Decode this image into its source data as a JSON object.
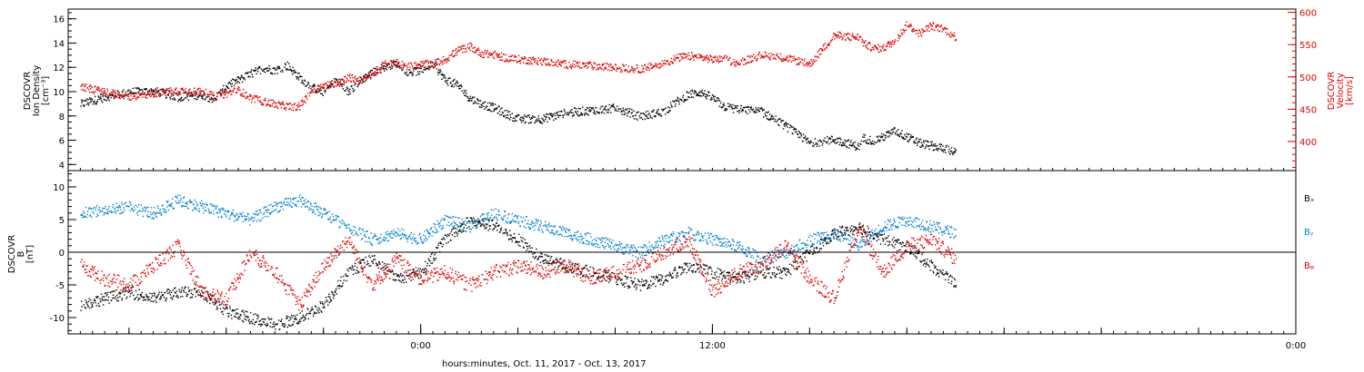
{
  "chart_data": [
    {
      "type": "scatter",
      "ylabel": [
        "DSCOVR",
        "Ion Density",
        "[cm⁻³]"
      ],
      "y2label": [
        "DSCOVR",
        "Velocity",
        "[km/s]"
      ],
      "ylim": [
        3.5,
        16.8
      ],
      "y2lim": [
        355,
        605
      ],
      "yticks": [
        "4",
        "6",
        "8",
        "10",
        "12",
        "14",
        "16"
      ],
      "y2ticks": [
        "400",
        "450",
        "500",
        "550",
        "600"
      ],
      "colors": {
        "density": "#000000",
        "velocity": "#e00000"
      },
      "series": [
        {
          "name": "Ion Density",
          "axis": "left",
          "color": "#000000",
          "x": [
            -14,
            -13,
            -12,
            -11,
            -10,
            -9,
            -8.5,
            -8,
            -7.5,
            -7,
            -6.5,
            -6,
            -5.5,
            -5,
            -4.5,
            -4,
            -3.5,
            -3,
            -2.5,
            -2,
            -1.5,
            -1,
            -0.5,
            0,
            0.5,
            1,
            1.5,
            2,
            2.5,
            3,
            3.5,
            4,
            5,
            6,
            7,
            8,
            9,
            10,
            10.5,
            11,
            11.5,
            12,
            12.5,
            13,
            14,
            15,
            16,
            17,
            18,
            18.2,
            18.6,
            19,
            19.5,
            20,
            20.5,
            21,
            21.5,
            22
          ],
          "y": [
            9.0,
            9.6,
            10.0,
            10.1,
            9.6,
            9.8,
            9.4,
            10.5,
            11.0,
            11.5,
            12.0,
            11.8,
            12.2,
            11.2,
            10.4,
            10.0,
            11.0,
            10.0,
            11.0,
            11.6,
            12.1,
            12.4,
            11.6,
            11.8,
            12.3,
            11.0,
            10.6,
            9.5,
            9.0,
            8.7,
            8.2,
            7.8,
            7.8,
            8.3,
            8.5,
            8.7,
            8.0,
            8.4,
            9.2,
            9.8,
            10.0,
            9.5,
            8.8,
            8.6,
            8.4,
            7.2,
            5.8,
            6.1,
            5.5,
            6.2,
            6.0,
            6.3,
            6.8,
            6.3,
            5.8,
            5.6,
            5.4,
            5.0
          ]
        },
        {
          "name": "Velocity",
          "axis": "right",
          "color": "#e00000",
          "x": [
            -14,
            -13,
            -12,
            -11,
            -10,
            -9,
            -8.5,
            -8,
            -7.5,
            -7,
            -6.5,
            -6,
            -5.5,
            -5,
            -4.5,
            -4,
            -3.5,
            -3,
            -2.5,
            -2,
            -1.5,
            -1,
            -0.5,
            0,
            0.5,
            1,
            1.5,
            2,
            2.5,
            3,
            3.5,
            4,
            5,
            6,
            7,
            8,
            9,
            10,
            10.5,
            11,
            11.5,
            12,
            12.5,
            13,
            14,
            15,
            16,
            17,
            18,
            18.2,
            18.6,
            19,
            19.5,
            20,
            20.5,
            21,
            21.5,
            22
          ],
          "y": [
            485,
            478,
            470,
            475,
            480,
            478,
            470,
            475,
            480,
            468,
            463,
            458,
            455,
            455,
            480,
            487,
            492,
            500,
            495,
            505,
            520,
            522,
            517,
            520,
            521,
            528,
            541,
            548,
            537,
            535,
            530,
            528,
            525,
            520,
            518,
            515,
            513,
            522,
            530,
            533,
            531,
            528,
            528,
            522,
            535,
            530,
            521,
            565,
            562,
            553,
            545,
            545,
            557,
            582,
            568,
            580,
            575,
            562
          ]
        }
      ]
    },
    {
      "type": "scatter",
      "ylabel": [
        "DSCOVR",
        "B",
        "[nT]"
      ],
      "ylim": [
        -12.5,
        12.5
      ],
      "yticks": [
        "-10",
        "-5",
        "0",
        "5",
        "10"
      ],
      "legend": [
        "Bₓ",
        "Bᵧ",
        "Bᵩ"
      ],
      "colors": {
        "bx": "#000000",
        "by": "#0080d0",
        "bz": "#e00000"
      },
      "series": [
        {
          "name": "Bₓ",
          "color": "#000000",
          "x": [
            -14,
            -13,
            -12,
            -11,
            -10,
            -9,
            -8,
            -7,
            -6,
            -5,
            -4,
            -3,
            -2,
            -1,
            0,
            1,
            2,
            3,
            4,
            5,
            6,
            7,
            8,
            9,
            10,
            11,
            12,
            13,
            14,
            15,
            16,
            17,
            18,
            19,
            20,
            21,
            22
          ],
          "y": [
            -8,
            -7,
            -6,
            -7,
            -6,
            -6,
            -9,
            -10,
            -11,
            -10,
            -8,
            -3,
            -1,
            -4,
            -3,
            2,
            5,
            4,
            2,
            -1,
            -2,
            -3,
            -4,
            -5,
            -4,
            -2,
            -3,
            -4,
            -3,
            -3,
            0,
            3,
            4,
            2,
            1,
            -2,
            -5
          ]
        },
        {
          "name": "Bᵧ",
          "color": "#0080d0",
          "x": [
            -14,
            -13,
            -12,
            -11,
            -10,
            -9,
            -8,
            -7,
            -6,
            -5,
            -4,
            -3,
            -2,
            -1,
            0,
            1,
            2,
            3,
            4,
            5,
            6,
            7,
            8,
            9,
            10,
            11,
            12,
            13,
            14,
            15,
            16,
            17,
            18,
            19,
            20,
            21,
            22
          ],
          "y": [
            6,
            6.5,
            7,
            6,
            8,
            7,
            6,
            5,
            7,
            8,
            6,
            4,
            2,
            3,
            2,
            5,
            4,
            6,
            5,
            4,
            3,
            2,
            1,
            0,
            2,
            3,
            2,
            1,
            -1,
            0,
            2,
            3,
            1,
            4,
            5,
            4,
            3
          ]
        },
        {
          "name": "Bᵩ",
          "color": "#e00000",
          "x": [
            -14,
            -13,
            -12,
            -11,
            -10,
            -9,
            -8,
            -7,
            -6,
            -5,
            -4,
            -3,
            -2,
            -1,
            0,
            1,
            2,
            3,
            4,
            5,
            6,
            7,
            8,
            9,
            10,
            11,
            12,
            13,
            14,
            15,
            16,
            17,
            18,
            19,
            20,
            21,
            22
          ],
          "y": [
            -2,
            -4,
            -5,
            -2,
            1,
            -6,
            -7,
            0,
            -3,
            -8,
            -2,
            2,
            -5,
            -1,
            -4,
            -3,
            -5,
            -3,
            -2,
            -3,
            -2,
            -4,
            -3,
            -2,
            0,
            2,
            -6,
            -3,
            -2,
            1,
            -4,
            -7,
            4,
            -3,
            1,
            2,
            -1
          ]
        }
      ]
    }
  ],
  "time_axis": {
    "label": "hours:minutes, Oct. 11, 2017 - Oct. 13, 2017",
    "xlim": [
      -14.5,
      36
    ],
    "major_ticks": [
      {
        "x": 0,
        "label": "0:00"
      },
      {
        "x": 12,
        "label": "12:00"
      },
      {
        "x": 36,
        "label": "0:00"
      }
    ]
  }
}
